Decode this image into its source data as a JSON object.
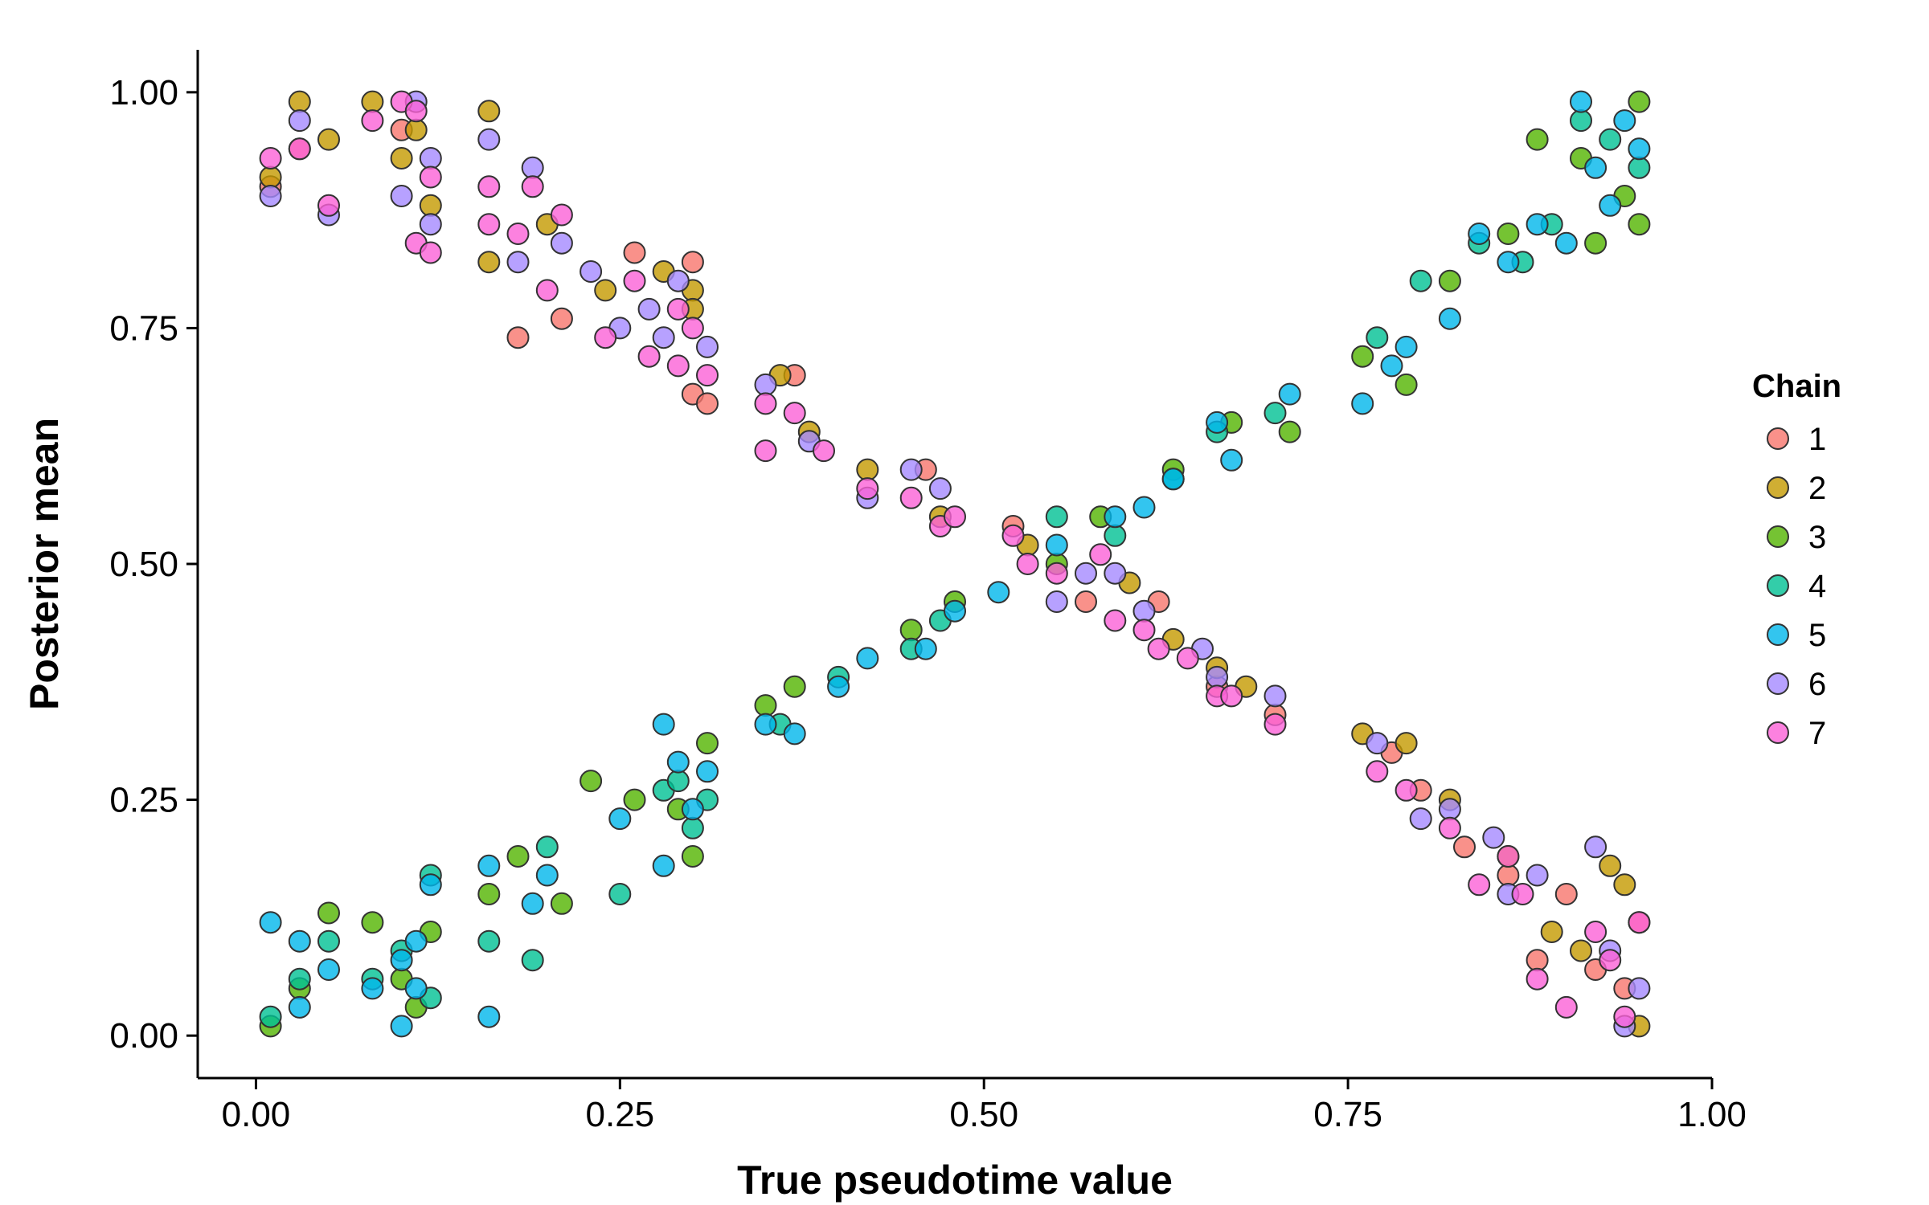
{
  "chart_data": {
    "type": "scatter",
    "xlabel": "True pseudotime value",
    "ylabel": "Posterior mean",
    "xlim": [
      -0.04,
      1.0
    ],
    "ylim": [
      -0.045,
      1.045
    ],
    "x_ticks": [
      "0.00",
      "0.25",
      "0.50",
      "0.75",
      "1.00"
    ],
    "y_ticks": [
      "0.00",
      "0.25",
      "0.50",
      "0.75",
      "1.00"
    ],
    "grid": false,
    "legend": {
      "title": "Chain",
      "placement": "right",
      "entries": [
        "1",
        "2",
        "3",
        "4",
        "5",
        "6",
        "7"
      ]
    },
    "colors": [
      "#F8766D",
      "#C49A00",
      "#53B400",
      "#00C094",
      "#00B6EB",
      "#A58AFF",
      "#FB61D7"
    ],
    "pattern": {
      "decreasing_branch_chains": [
        "1",
        "2",
        "6",
        "7"
      ],
      "increasing_branch_chains": [
        "3",
        "4",
        "5"
      ],
      "description_points": "Two mirrored clouds: chains 1,2,6,7 fall from ~0.95 to ~0.05 and chains 3,4,5 rise from ~0.05 to ~0.95 as true pseudotime goes 0 to 0.96, crossing near (0.53, 0.5)."
    },
    "series": [
      {
        "name": "1",
        "points": [
          [
            0.01,
            0.9
          ],
          [
            0.03,
            0.94
          ],
          [
            0.1,
            0.96
          ],
          [
            0.18,
            0.74
          ],
          [
            0.21,
            0.76
          ],
          [
            0.26,
            0.83
          ],
          [
            0.3,
            0.82
          ],
          [
            0.3,
            0.68
          ],
          [
            0.31,
            0.67
          ],
          [
            0.37,
            0.7
          ],
          [
            0.46,
            0.6
          ],
          [
            0.52,
            0.54
          ],
          [
            0.57,
            0.46
          ],
          [
            0.62,
            0.46
          ],
          [
            0.66,
            0.37
          ],
          [
            0.7,
            0.34
          ],
          [
            0.78,
            0.3
          ],
          [
            0.8,
            0.26
          ],
          [
            0.83,
            0.2
          ],
          [
            0.86,
            0.17
          ],
          [
            0.88,
            0.08
          ],
          [
            0.9,
            0.15
          ],
          [
            0.92,
            0.07
          ],
          [
            0.94,
            0.05
          ],
          [
            0.95,
            0.12
          ]
        ]
      },
      {
        "name": "2",
        "points": [
          [
            0.01,
            0.91
          ],
          [
            0.03,
            0.99
          ],
          [
            0.05,
            0.95
          ],
          [
            0.08,
            0.99
          ],
          [
            0.1,
            0.93
          ],
          [
            0.11,
            0.96
          ],
          [
            0.12,
            0.88
          ],
          [
            0.16,
            0.98
          ],
          [
            0.16,
            0.82
          ],
          [
            0.2,
            0.86
          ],
          [
            0.24,
            0.79
          ],
          [
            0.28,
            0.81
          ],
          [
            0.3,
            0.79
          ],
          [
            0.3,
            0.77
          ],
          [
            0.36,
            0.7
          ],
          [
            0.38,
            0.64
          ],
          [
            0.42,
            0.6
          ],
          [
            0.47,
            0.55
          ],
          [
            0.53,
            0.52
          ],
          [
            0.6,
            0.48
          ],
          [
            0.63,
            0.42
          ],
          [
            0.66,
            0.39
          ],
          [
            0.68,
            0.37
          ],
          [
            0.76,
            0.32
          ],
          [
            0.79,
            0.31
          ],
          [
            0.82,
            0.25
          ],
          [
            0.86,
            0.19
          ],
          [
            0.89,
            0.11
          ],
          [
            0.91,
            0.09
          ],
          [
            0.93,
            0.18
          ],
          [
            0.94,
            0.16
          ],
          [
            0.95,
            0.01
          ]
        ]
      },
      {
        "name": "3",
        "points": [
          [
            0.01,
            0.01
          ],
          [
            0.03,
            0.05
          ],
          [
            0.05,
            0.13
          ],
          [
            0.08,
            0.12
          ],
          [
            0.1,
            0.06
          ],
          [
            0.11,
            0.03
          ],
          [
            0.12,
            0.11
          ],
          [
            0.16,
            0.15
          ],
          [
            0.18,
            0.19
          ],
          [
            0.21,
            0.14
          ],
          [
            0.23,
            0.27
          ],
          [
            0.26,
            0.25
          ],
          [
            0.29,
            0.24
          ],
          [
            0.3,
            0.19
          ],
          [
            0.31,
            0.31
          ],
          [
            0.35,
            0.35
          ],
          [
            0.37,
            0.37
          ],
          [
            0.45,
            0.43
          ],
          [
            0.48,
            0.46
          ],
          [
            0.55,
            0.5
          ],
          [
            0.58,
            0.55
          ],
          [
            0.63,
            0.6
          ],
          [
            0.67,
            0.65
          ],
          [
            0.71,
            0.64
          ],
          [
            0.76,
            0.72
          ],
          [
            0.79,
            0.69
          ],
          [
            0.82,
            0.8
          ],
          [
            0.86,
            0.85
          ],
          [
            0.88,
            0.95
          ],
          [
            0.91,
            0.93
          ],
          [
            0.92,
            0.84
          ],
          [
            0.94,
            0.89
          ],
          [
            0.95,
            0.86
          ],
          [
            0.95,
            0.99
          ]
        ]
      },
      {
        "name": "4",
        "points": [
          [
            0.01,
            0.02
          ],
          [
            0.03,
            0.06
          ],
          [
            0.05,
            0.1
          ],
          [
            0.08,
            0.06
          ],
          [
            0.1,
            0.09
          ],
          [
            0.12,
            0.17
          ],
          [
            0.12,
            0.04
          ],
          [
            0.16,
            0.1
          ],
          [
            0.19,
            0.08
          ],
          [
            0.2,
            0.2
          ],
          [
            0.25,
            0.15
          ],
          [
            0.28,
            0.26
          ],
          [
            0.29,
            0.27
          ],
          [
            0.3,
            0.22
          ],
          [
            0.31,
            0.25
          ],
          [
            0.36,
            0.33
          ],
          [
            0.4,
            0.38
          ],
          [
            0.45,
            0.41
          ],
          [
            0.47,
            0.44
          ],
          [
            0.55,
            0.55
          ],
          [
            0.59,
            0.53
          ],
          [
            0.63,
            0.59
          ],
          [
            0.66,
            0.64
          ],
          [
            0.7,
            0.66
          ],
          [
            0.77,
            0.74
          ],
          [
            0.8,
            0.8
          ],
          [
            0.84,
            0.84
          ],
          [
            0.87,
            0.82
          ],
          [
            0.89,
            0.86
          ],
          [
            0.91,
            0.97
          ],
          [
            0.93,
            0.95
          ],
          [
            0.95,
            0.92
          ]
        ]
      },
      {
        "name": "5",
        "points": [
          [
            0.01,
            0.12
          ],
          [
            0.03,
            0.1
          ],
          [
            0.03,
            0.03
          ],
          [
            0.05,
            0.07
          ],
          [
            0.08,
            0.05
          ],
          [
            0.1,
            0.08
          ],
          [
            0.1,
            0.01
          ],
          [
            0.11,
            0.1
          ],
          [
            0.11,
            0.05
          ],
          [
            0.12,
            0.16
          ],
          [
            0.16,
            0.02
          ],
          [
            0.16,
            0.18
          ],
          [
            0.19,
            0.14
          ],
          [
            0.2,
            0.17
          ],
          [
            0.25,
            0.23
          ],
          [
            0.28,
            0.33
          ],
          [
            0.28,
            0.18
          ],
          [
            0.29,
            0.29
          ],
          [
            0.3,
            0.24
          ],
          [
            0.31,
            0.28
          ],
          [
            0.35,
            0.33
          ],
          [
            0.37,
            0.32
          ],
          [
            0.4,
            0.37
          ],
          [
            0.42,
            0.4
          ],
          [
            0.46,
            0.41
          ],
          [
            0.48,
            0.45
          ],
          [
            0.51,
            0.47
          ],
          [
            0.55,
            0.52
          ],
          [
            0.59,
            0.55
          ],
          [
            0.61,
            0.56
          ],
          [
            0.63,
            0.59
          ],
          [
            0.66,
            0.65
          ],
          [
            0.67,
            0.61
          ],
          [
            0.71,
            0.68
          ],
          [
            0.76,
            0.67
          ],
          [
            0.78,
            0.71
          ],
          [
            0.79,
            0.73
          ],
          [
            0.82,
            0.76
          ],
          [
            0.84,
            0.85
          ],
          [
            0.86,
            0.82
          ],
          [
            0.88,
            0.86
          ],
          [
            0.9,
            0.84
          ],
          [
            0.91,
            0.99
          ],
          [
            0.92,
            0.92
          ],
          [
            0.93,
            0.88
          ],
          [
            0.94,
            0.97
          ],
          [
            0.95,
            0.94
          ]
        ]
      },
      {
        "name": "6",
        "points": [
          [
            0.01,
            0.89
          ],
          [
            0.03,
            0.97
          ],
          [
            0.05,
            0.87
          ],
          [
            0.1,
            0.89
          ],
          [
            0.11,
            0.99
          ],
          [
            0.12,
            0.86
          ],
          [
            0.12,
            0.93
          ],
          [
            0.16,
            0.95
          ],
          [
            0.18,
            0.82
          ],
          [
            0.19,
            0.92
          ],
          [
            0.21,
            0.84
          ],
          [
            0.23,
            0.81
          ],
          [
            0.25,
            0.75
          ],
          [
            0.27,
            0.77
          ],
          [
            0.28,
            0.74
          ],
          [
            0.29,
            0.8
          ],
          [
            0.31,
            0.73
          ],
          [
            0.35,
            0.69
          ],
          [
            0.38,
            0.63
          ],
          [
            0.42,
            0.57
          ],
          [
            0.45,
            0.6
          ],
          [
            0.47,
            0.58
          ],
          [
            0.55,
            0.46
          ],
          [
            0.57,
            0.49
          ],
          [
            0.59,
            0.49
          ],
          [
            0.61,
            0.45
          ],
          [
            0.65,
            0.41
          ],
          [
            0.66,
            0.38
          ],
          [
            0.7,
            0.36
          ],
          [
            0.77,
            0.31
          ],
          [
            0.8,
            0.23
          ],
          [
            0.82,
            0.24
          ],
          [
            0.85,
            0.21
          ],
          [
            0.86,
            0.15
          ],
          [
            0.88,
            0.17
          ],
          [
            0.92,
            0.2
          ],
          [
            0.93,
            0.09
          ],
          [
            0.94,
            0.01
          ],
          [
            0.95,
            0.05
          ]
        ]
      },
      {
        "name": "7",
        "points": [
          [
            0.01,
            0.93
          ],
          [
            0.03,
            0.94
          ],
          [
            0.05,
            0.88
          ],
          [
            0.08,
            0.97
          ],
          [
            0.1,
            0.99
          ],
          [
            0.11,
            0.84
          ],
          [
            0.11,
            0.98
          ],
          [
            0.12,
            0.91
          ],
          [
            0.12,
            0.83
          ],
          [
            0.16,
            0.86
          ],
          [
            0.16,
            0.9
          ],
          [
            0.18,
            0.85
          ],
          [
            0.19,
            0.9
          ],
          [
            0.2,
            0.79
          ],
          [
            0.21,
            0.87
          ],
          [
            0.24,
            0.74
          ],
          [
            0.26,
            0.8
          ],
          [
            0.27,
            0.72
          ],
          [
            0.29,
            0.71
          ],
          [
            0.29,
            0.77
          ],
          [
            0.3,
            0.75
          ],
          [
            0.31,
            0.7
          ],
          [
            0.35,
            0.67
          ],
          [
            0.35,
            0.62
          ],
          [
            0.37,
            0.66
          ],
          [
            0.39,
            0.62
          ],
          [
            0.42,
            0.58
          ],
          [
            0.45,
            0.57
          ],
          [
            0.47,
            0.54
          ],
          [
            0.48,
            0.55
          ],
          [
            0.52,
            0.53
          ],
          [
            0.53,
            0.5
          ],
          [
            0.55,
            0.49
          ],
          [
            0.58,
            0.51
          ],
          [
            0.59,
            0.44
          ],
          [
            0.61,
            0.43
          ],
          [
            0.62,
            0.41
          ],
          [
            0.64,
            0.4
          ],
          [
            0.66,
            0.36
          ],
          [
            0.67,
            0.36
          ],
          [
            0.7,
            0.33
          ],
          [
            0.77,
            0.28
          ],
          [
            0.79,
            0.26
          ],
          [
            0.82,
            0.22
          ],
          [
            0.84,
            0.16
          ],
          [
            0.86,
            0.19
          ],
          [
            0.87,
            0.15
          ],
          [
            0.88,
            0.06
          ],
          [
            0.9,
            0.03
          ],
          [
            0.92,
            0.11
          ],
          [
            0.93,
            0.08
          ],
          [
            0.94,
            0.02
          ],
          [
            0.95,
            0.12
          ]
        ]
      }
    ]
  }
}
